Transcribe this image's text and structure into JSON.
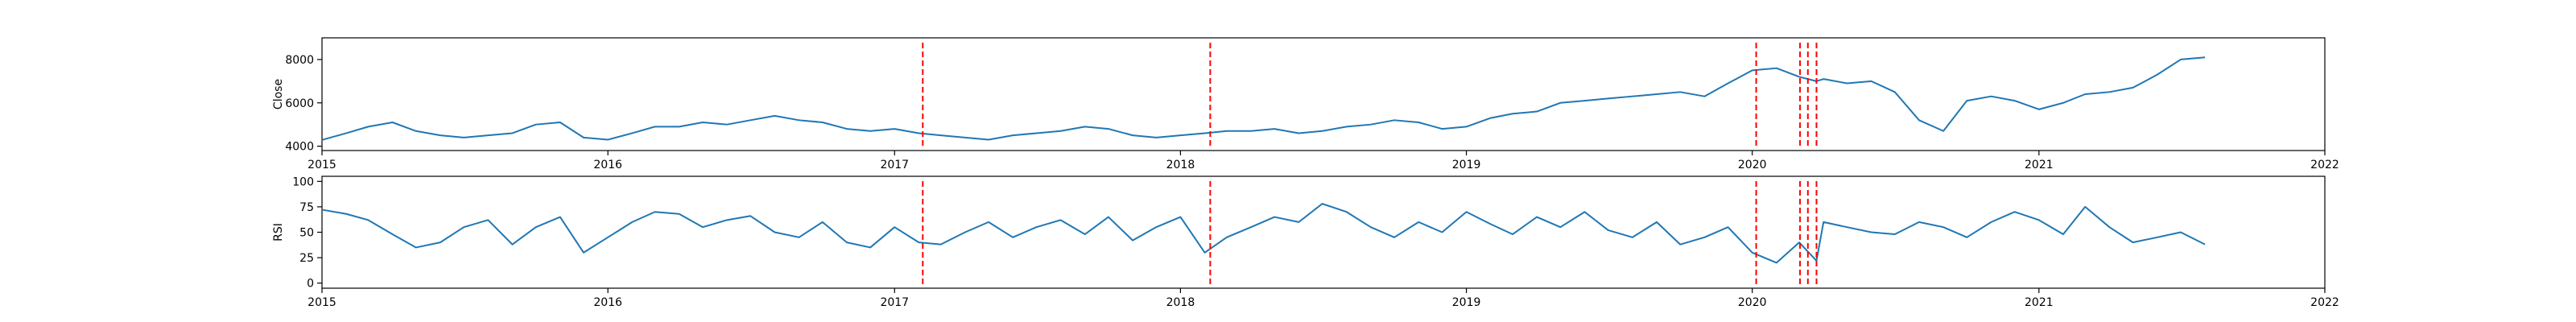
{
  "colors": {
    "series": "#1f77b4",
    "event_line": "#ff0000",
    "axes": "#000000"
  },
  "chart_data": [
    {
      "type": "line",
      "ylabel": "Close",
      "xlim": [
        "2015-01-01",
        "2022-01-01"
      ],
      "ylim": [
        3800,
        9000
      ],
      "xticks": [
        "2015",
        "2016",
        "2017",
        "2018",
        "2019",
        "2020",
        "2021",
        "2022"
      ],
      "yticks": [
        "4000",
        "6000",
        "8000"
      ],
      "grid": false,
      "event_dates": [
        "2017-02-06",
        "2018-02-08",
        "2020-01-06",
        "2020-03-02",
        "2020-03-12",
        "2020-03-23"
      ],
      "series": [
        {
          "x": [
            "2015-01-02",
            "2015-02-01",
            "2015-03-01",
            "2015-04-01",
            "2015-05-01",
            "2015-06-01",
            "2015-07-01",
            "2015-08-01",
            "2015-09-01",
            "2015-10-01",
            "2015-11-01",
            "2015-12-01",
            "2016-01-01",
            "2016-02-01",
            "2016-03-01",
            "2016-04-01",
            "2016-05-01",
            "2016-06-01",
            "2016-07-01",
            "2016-08-01",
            "2016-09-01",
            "2016-10-01",
            "2016-11-01",
            "2016-12-01",
            "2017-01-01",
            "2017-02-01",
            "2017-03-01",
            "2017-04-01",
            "2017-05-01",
            "2017-06-01",
            "2017-07-01",
            "2017-08-01",
            "2017-09-01",
            "2017-10-01",
            "2017-11-01",
            "2017-12-01",
            "2018-01-01",
            "2018-02-01",
            "2018-03-01",
            "2018-04-01",
            "2018-05-01",
            "2018-06-01",
            "2018-07-01",
            "2018-08-01",
            "2018-09-01",
            "2018-10-01",
            "2018-11-01",
            "2018-12-01",
            "2019-01-01",
            "2019-02-01",
            "2019-03-01",
            "2019-04-01",
            "2019-05-01",
            "2019-06-01",
            "2019-07-01",
            "2019-08-01",
            "2019-09-01",
            "2019-10-01",
            "2019-11-01",
            "2019-12-01",
            "2020-01-01",
            "2020-02-01",
            "2020-03-01",
            "2020-03-23",
            "2020-04-01",
            "2020-05-01",
            "2020-06-01",
            "2020-07-01",
            "2020-08-01",
            "2020-09-01",
            "2020-10-01",
            "2020-11-01",
            "2020-12-01",
            "2021-01-01",
            "2021-02-01",
            "2021-03-01",
            "2021-04-01",
            "2021-05-01",
            "2021-06-01",
            "2021-07-01",
            "2021-08-01"
          ],
          "values": [
            4300,
            4600,
            4900,
            5100,
            4700,
            4500,
            4400,
            4500,
            4600,
            5000,
            5100,
            4400,
            4300,
            4600,
            4900,
            4900,
            5100,
            5000,
            5200,
            5400,
            5200,
            5100,
            4800,
            4700,
            4800,
            4600,
            4500,
            4400,
            4300,
            4500,
            4600,
            4700,
            4900,
            4800,
            4500,
            4400,
            4500,
            4600,
            4700,
            4700,
            4800,
            4600,
            4700,
            4900,
            5000,
            5200,
            5100,
            4800,
            4900,
            5300,
            5500,
            5600,
            6000,
            6100,
            6200,
            6300,
            6400,
            6500,
            6300,
            6900,
            7500,
            7600,
            7200,
            7000,
            7100,
            6900,
            7000,
            6500,
            5200,
            4700,
            6100,
            6300,
            6100,
            5700,
            6000,
            6400,
            6500,
            6700,
            7300,
            8000,
            8100
          ]
        }
      ]
    },
    {
      "type": "line",
      "ylabel": "RSI",
      "xlim": [
        "2015-01-01",
        "2022-01-01"
      ],
      "ylim": [
        -5,
        105
      ],
      "xticks": [
        "2015",
        "2016",
        "2017",
        "2018",
        "2019",
        "2020",
        "2021",
        "2022"
      ],
      "yticks": [
        "0",
        "25",
        "50",
        "75",
        "100"
      ],
      "grid": false,
      "event_dates": [
        "2017-02-06",
        "2018-02-08",
        "2020-01-06",
        "2020-03-02",
        "2020-03-12",
        "2020-03-23"
      ],
      "series": [
        {
          "x": [
            "2015-01-02",
            "2015-02-01",
            "2015-03-01",
            "2015-04-01",
            "2015-05-01",
            "2015-06-01",
            "2015-07-01",
            "2015-08-01",
            "2015-09-01",
            "2015-10-01",
            "2015-11-01",
            "2015-12-01",
            "2016-01-01",
            "2016-02-01",
            "2016-03-01",
            "2016-04-01",
            "2016-05-01",
            "2016-06-01",
            "2016-07-01",
            "2016-08-01",
            "2016-09-01",
            "2016-10-01",
            "2016-11-01",
            "2016-12-01",
            "2017-01-01",
            "2017-02-01",
            "2017-03-01",
            "2017-04-01",
            "2017-05-01",
            "2017-06-01",
            "2017-07-01",
            "2017-08-01",
            "2017-09-01",
            "2017-10-01",
            "2017-11-01",
            "2017-12-01",
            "2018-01-01",
            "2018-02-01",
            "2018-03-01",
            "2018-04-01",
            "2018-05-01",
            "2018-06-01",
            "2018-07-01",
            "2018-08-01",
            "2018-09-01",
            "2018-10-01",
            "2018-11-01",
            "2018-12-01",
            "2019-01-01",
            "2019-02-01",
            "2019-03-01",
            "2019-04-01",
            "2019-05-01",
            "2019-06-01",
            "2019-07-01",
            "2019-08-01",
            "2019-09-01",
            "2019-10-01",
            "2019-11-01",
            "2019-12-01",
            "2020-01-01",
            "2020-02-01",
            "2020-03-01",
            "2020-03-23",
            "2020-04-01",
            "2020-05-01",
            "2020-06-01",
            "2020-07-01",
            "2020-08-01",
            "2020-09-01",
            "2020-10-01",
            "2020-11-01",
            "2020-12-01",
            "2021-01-01",
            "2021-02-01",
            "2021-03-01",
            "2021-04-01",
            "2021-05-01",
            "2021-06-01",
            "2021-07-01",
            "2021-08-01"
          ],
          "values": [
            72,
            68,
            62,
            48,
            35,
            40,
            55,
            62,
            38,
            55,
            65,
            30,
            45,
            60,
            70,
            68,
            55,
            62,
            66,
            50,
            45,
            60,
            40,
            35,
            55,
            40,
            38,
            50,
            60,
            45,
            55,
            62,
            48,
            65,
            42,
            55,
            65,
            30,
            45,
            55,
            65,
            60,
            78,
            70,
            55,
            45,
            60,
            50,
            70,
            58,
            48,
            65,
            55,
            70,
            52,
            45,
            60,
            38,
            45,
            55,
            30,
            20,
            40,
            22,
            60,
            55,
            50,
            48,
            60,
            55,
            45,
            60,
            70,
            62,
            48,
            75,
            55,
            40,
            45,
            50,
            38
          ]
        }
      ]
    }
  ]
}
